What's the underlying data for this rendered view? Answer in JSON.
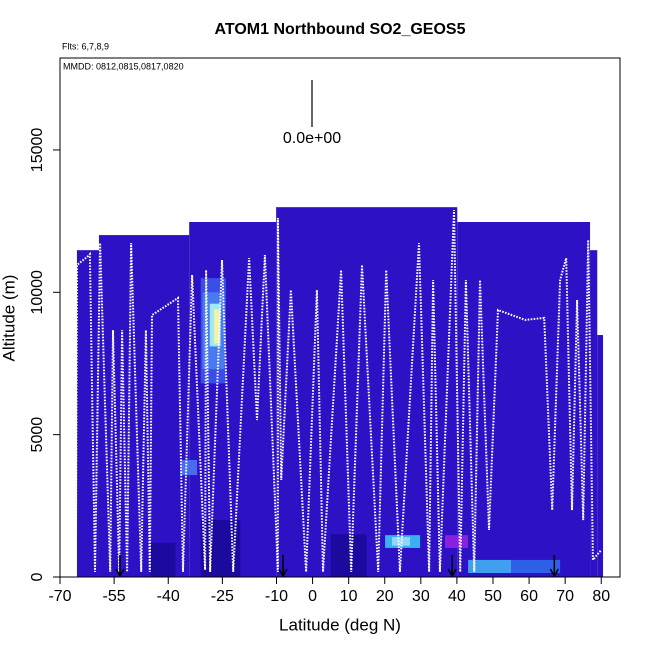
{
  "chart_data": {
    "type": "curtain",
    "title": "ATOM1 Northbound SO2_GEOS5",
    "subtitle": "Flts: 6,7,8,9",
    "annotation": "MMDD: 0812,0815,0817,0820",
    "scale_label": "0.0e+00",
    "x_label": "Latitude (deg N)",
    "y_label": "Altitude (m)",
    "xlim": [
      -70,
      85.2
    ],
    "ylim": [
      0,
      18230
    ],
    "xticks": [
      -70,
      -55,
      -40,
      -25,
      -10,
      0,
      10,
      20,
      30,
      40,
      50,
      60,
      70,
      80
    ],
    "yticks": [
      0,
      5000,
      10000,
      15000
    ],
    "curtain": {
      "color": "#2c12c4",
      "edges": [
        -65.3,
        -59.2,
        -34.2,
        -10.1,
        40.1,
        76.9,
        78.9,
        80.5
      ],
      "tops": [
        11480,
        12010,
        12470,
        12990,
        12470,
        11480,
        8500
      ]
    },
    "features": [
      {
        "lat": [
          -45,
          -38
        ],
        "alt": [
          0,
          1200
        ],
        "color": "#1c0a9e"
      },
      {
        "lat": [
          -31,
          -20
        ],
        "alt": [
          0,
          2000
        ],
        "color": "#1c0a9e"
      },
      {
        "lat": [
          5,
          15
        ],
        "alt": [
          0,
          1500
        ],
        "color": "#1c0a9e"
      },
      {
        "lat": [
          -31,
          -24
        ],
        "alt": [
          6800,
          10500
        ],
        "color": "#3a4ee6"
      },
      {
        "lat": [
          -30.5,
          -24.5
        ],
        "alt": [
          7300,
          10000
        ],
        "color": "#4a7af0"
      },
      {
        "lat": [
          -28.5,
          -25.5
        ],
        "alt": [
          8100,
          9600
        ],
        "color": "#9fe8f8"
      },
      {
        "lat": [
          -27.3,
          -25.8
        ],
        "alt": [
          8200,
          9400
        ],
        "color": "#f4f4a0"
      },
      {
        "lat": [
          -36.7,
          -32.0
        ],
        "alt": [
          3580,
          4110
        ],
        "color": "#4a6af0"
      },
      {
        "lat": [
          20.1,
          29.8
        ],
        "alt": [
          1020,
          1470
        ],
        "color": "#3ab0f0"
      },
      {
        "lat": [
          22,
          27
        ],
        "alt": [
          1100,
          1400
        ],
        "color": "#8fd8f8"
      },
      {
        "lat": [
          36.7,
          43.1
        ],
        "alt": [
          1020,
          1470
        ],
        "color": "#8a20e0"
      },
      {
        "lat": [
          43.1,
          55
        ],
        "alt": [
          140,
          600
        ],
        "color": "#40a0f0"
      },
      {
        "lat": [
          55,
          68.6
        ],
        "alt": [
          140,
          600
        ],
        "color": "#3060e8"
      }
    ],
    "arrows": [
      -53.4,
      -8.2,
      38.7,
      67.0
    ],
    "track": {
      "color": "#ffffff",
      "x": [
        -65.6,
        -65.3,
        -62.2,
        -61.7,
        -60.3,
        -58.9,
        -56.1,
        -55.3,
        -53.6,
        -52.8,
        -51.4,
        -50.3,
        -47.5,
        -46.2,
        -45.1,
        -44.5,
        -37.3,
        -35.9,
        -33.4,
        -29.8,
        -29.5,
        -28.4,
        -25.1,
        -22.0,
        -17.6,
        -15.4,
        -13.2,
        -9.6,
        -9.6,
        -8.7,
        -6.0,
        -1.8,
        1.2,
        2.9,
        7.9,
        10.7,
        13.7,
        18.2,
        20.4,
        24.2,
        29.5,
        32.3,
        33.4,
        35.3,
        39.2,
        40.9,
        42.5,
        44.8,
        46.4,
        48.9,
        51.4,
        58.9,
        64.2,
        66.4,
        68.6,
        70.3,
        71.9,
        73.3,
        75.0,
        76.4,
        77.7,
        80.0
      ],
      "y": [
        140,
        10960,
        11270,
        11340,
        180,
        11730,
        180,
        8670,
        180,
        8670,
        180,
        11730,
        180,
        8670,
        180,
        9200,
        9800,
        180,
        10610,
        250,
        10780,
        180,
        11130,
        180,
        11200,
        5510,
        11310,
        180,
        12610,
        3410,
        10080,
        180,
        10080,
        180,
        10780,
        180,
        10960,
        180,
        10780,
        180,
        11730,
        180,
        10430,
        180,
        12890,
        180,
        10430,
        180,
        10430,
        1650,
        9380,
        9030,
        9100,
        2350,
        10430,
        11200,
        2350,
        9730,
        2000,
        11840,
        600,
        950
      ]
    }
  }
}
